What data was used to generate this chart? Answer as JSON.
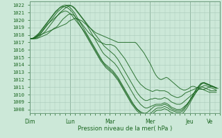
{
  "title": "",
  "xlabel": "Pression niveau de la mer( hPa )",
  "ylabel": "",
  "bg_color": "#cce8d8",
  "grid_color": "#a8c8b8",
  "line_color": "#1a6620",
  "ylim": [
    1007.5,
    1022.5
  ],
  "yticks": [
    1008,
    1009,
    1010,
    1011,
    1012,
    1013,
    1014,
    1015,
    1016,
    1017,
    1018,
    1019,
    1020,
    1021,
    1022
  ],
  "day_labels": [
    "Dim",
    "Lun",
    "Mar",
    "Mer",
    "Jeu",
    "Ve"
  ],
  "day_positions": [
    0,
    24,
    48,
    72,
    96,
    108
  ],
  "total_hours": 114,
  "lines": [
    [
      1017.5,
      1017.5,
      1017.6,
      1017.7,
      1017.8,
      1017.9,
      1018.0,
      1018.1,
      1018.2,
      1018.3,
      1018.4,
      1018.5,
      1018.6,
      1018.7,
      1018.8,
      1018.9,
      1019.0,
      1019.1,
      1019.2,
      1019.3,
      1019.4,
      1019.5,
      1019.7,
      1019.9,
      1020.0,
      1020.1,
      1020.2,
      1020.2,
      1020.1,
      1020.0,
      1019.9,
      1019.7,
      1019.5,
      1019.3,
      1019.1,
      1018.9,
      1018.7,
      1018.5,
      1018.3,
      1018.2,
      1018.1,
      1018.0,
      1017.9,
      1017.8,
      1017.7,
      1017.6,
      1017.5,
      1017.4,
      1017.3,
      1017.2,
      1017.1,
      1017.0,
      1017.0,
      1017.0,
      1017.0,
      1017.0,
      1017.0,
      1017.0,
      1017.0,
      1017.0,
      1017.0,
      1017.0,
      1016.8,
      1016.5,
      1016.2,
      1015.9,
      1015.6,
      1015.2,
      1014.8,
      1014.4,
      1014.0,
      1013.5,
      1013.0,
      1012.6,
      1012.3,
      1012.1,
      1012.0,
      1012.1,
      1012.2,
      1012.3,
      1012.2,
      1012.0,
      1011.8,
      1011.6,
      1011.4,
      1011.2,
      1011.0,
      1010.8,
      1010.7,
      1010.6,
      1010.6,
      1010.7,
      1010.8,
      1011.0,
      1011.1,
      1011.1,
      1011.0,
      1010.9,
      1010.8,
      1010.7,
      1010.7,
      1010.7,
      1010.8,
      1010.9,
      1011.0,
      1011.1,
      1011.1,
      1011.0,
      1010.9,
      1010.8
    ],
    [
      1017.5,
      1017.5,
      1017.5,
      1017.5,
      1017.5,
      1017.6,
      1017.7,
      1017.8,
      1017.9,
      1018.0,
      1018.1,
      1018.3,
      1018.5,
      1018.7,
      1018.9,
      1019.0,
      1019.2,
      1019.5,
      1019.8,
      1020.1,
      1020.3,
      1020.5,
      1020.7,
      1020.8,
      1020.8,
      1020.7,
      1020.5,
      1020.2,
      1020.0,
      1019.8,
      1019.5,
      1019.2,
      1018.9,
      1018.6,
      1018.3,
      1018.1,
      1017.9,
      1017.7,
      1017.5,
      1017.3,
      1017.1,
      1017.0,
      1016.9,
      1016.8,
      1016.7,
      1016.7,
      1016.7,
      1016.7,
      1016.6,
      1016.5,
      1016.3,
      1016.0,
      1015.7,
      1015.4,
      1015.1,
      1014.8,
      1014.4,
      1014.0,
      1013.6,
      1013.2,
      1012.8,
      1012.4,
      1012.0,
      1011.7,
      1011.4,
      1011.2,
      1011.0,
      1010.8,
      1010.7,
      1010.6,
      1010.5,
      1010.4,
      1010.5,
      1010.6,
      1010.6,
      1010.5,
      1010.5,
      1010.5,
      1010.5,
      1010.4,
      1010.3,
      1010.1,
      1009.9,
      1009.8,
      1009.7,
      1009.6,
      1009.6,
      1009.7,
      1009.8,
      1010.0,
      1010.2,
      1010.3,
      1010.4,
      1010.5,
      1010.6,
      1010.7,
      1010.8,
      1010.9,
      1011.0,
      1011.0,
      1011.0,
      1010.9,
      1010.8,
      1010.7,
      1010.6,
      1010.5,
      1010.5,
      1010.5,
      1010.5
    ],
    [
      1017.5,
      1017.5,
      1017.5,
      1017.5,
      1017.6,
      1017.7,
      1017.9,
      1018.1,
      1018.3,
      1018.5,
      1018.8,
      1019.1,
      1019.4,
      1019.7,
      1020.0,
      1020.3,
      1020.6,
      1020.9,
      1021.1,
      1021.3,
      1021.5,
      1021.7,
      1021.8,
      1021.9,
      1021.9,
      1021.8,
      1021.6,
      1021.3,
      1021.0,
      1020.7,
      1020.4,
      1020.1,
      1019.8,
      1019.5,
      1019.2,
      1018.9,
      1018.6,
      1018.3,
      1018.0,
      1017.7,
      1017.4,
      1017.1,
      1016.8,
      1016.5,
      1016.3,
      1016.1,
      1015.9,
      1015.7,
      1015.5,
      1015.3,
      1015.0,
      1014.7,
      1014.3,
      1013.9,
      1013.5,
      1013.1,
      1012.7,
      1012.3,
      1011.9,
      1011.5,
      1011.1,
      1010.7,
      1010.3,
      1010.0,
      1009.7,
      1009.5,
      1009.3,
      1009.2,
      1009.2,
      1009.3,
      1009.4,
      1009.4,
      1009.5,
      1009.5,
      1009.4,
      1009.4,
      1009.4,
      1009.5,
      1009.6,
      1009.5,
      1009.4,
      1009.2,
      1009.0,
      1008.9,
      1008.8,
      1008.7,
      1008.7,
      1008.7,
      1008.8,
      1009.0,
      1009.2,
      1009.4,
      1009.6,
      1009.8,
      1010.0,
      1010.2,
      1010.4,
      1010.6,
      1010.7,
      1010.8,
      1010.7,
      1010.6,
      1010.5,
      1010.4,
      1010.3,
      1010.3,
      1010.3,
      1010.3,
      1010.3
    ],
    [
      1017.5,
      1017.5,
      1017.5,
      1017.6,
      1017.7,
      1017.9,
      1018.1,
      1018.4,
      1018.7,
      1019.0,
      1019.3,
      1019.6,
      1019.9,
      1020.2,
      1020.5,
      1020.8,
      1021.1,
      1021.3,
      1021.5,
      1021.7,
      1021.8,
      1021.9,
      1022.0,
      1022.0,
      1021.9,
      1021.7,
      1021.5,
      1021.2,
      1020.9,
      1020.6,
      1020.3,
      1020.0,
      1019.7,
      1019.3,
      1018.9,
      1018.5,
      1018.1,
      1017.7,
      1017.3,
      1016.9,
      1016.5,
      1016.1,
      1015.7,
      1015.4,
      1015.2,
      1015.0,
      1014.8,
      1014.6,
      1014.4,
      1014.2,
      1013.9,
      1013.6,
      1013.2,
      1012.8,
      1012.4,
      1012.0,
      1011.6,
      1011.2,
      1010.8,
      1010.4,
      1010.0,
      1009.6,
      1009.3,
      1009.0,
      1008.7,
      1008.5,
      1008.3,
      1008.2,
      1008.2,
      1008.3,
      1008.4,
      1008.5,
      1008.6,
      1008.7,
      1008.7,
      1008.7,
      1008.7,
      1008.8,
      1008.9,
      1008.8,
      1008.7,
      1008.5,
      1008.3,
      1008.2,
      1008.1,
      1008.0,
      1008.0,
      1008.0,
      1008.1,
      1008.3,
      1008.5,
      1008.7,
      1009.0,
      1009.3,
      1009.6,
      1009.9,
      1010.2,
      1010.5,
      1010.8,
      1011.0,
      1011.1,
      1011.2,
      1011.2,
      1011.1,
      1011.0,
      1010.9,
      1010.8,
      1010.7,
      1010.6
    ],
    [
      1017.5,
      1017.5,
      1017.6,
      1017.7,
      1017.9,
      1018.1,
      1018.4,
      1018.7,
      1019.0,
      1019.3,
      1019.6,
      1019.9,
      1020.2,
      1020.5,
      1020.8,
      1021.1,
      1021.3,
      1021.6,
      1021.8,
      1021.9,
      1022.0,
      1022.0,
      1021.9,
      1021.7,
      1021.5,
      1021.2,
      1020.9,
      1020.5,
      1020.1,
      1019.7,
      1019.3,
      1018.9,
      1018.5,
      1018.1,
      1017.7,
      1017.3,
      1016.9,
      1016.5,
      1016.1,
      1015.7,
      1015.3,
      1014.9,
      1014.5,
      1014.2,
      1014.0,
      1013.8,
      1013.6,
      1013.4,
      1013.2,
      1012.9,
      1012.6,
      1012.3,
      1011.9,
      1011.5,
      1011.1,
      1010.7,
      1010.3,
      1009.9,
      1009.5,
      1009.1,
      1008.7,
      1008.4,
      1008.1,
      1007.9,
      1007.7,
      1007.6,
      1007.5,
      1007.5,
      1007.6,
      1007.8,
      1008.0,
      1008.2,
      1008.4,
      1008.5,
      1008.5,
      1008.5,
      1008.5,
      1008.6,
      1008.7,
      1008.6,
      1008.5,
      1008.3,
      1008.1,
      1008.0,
      1007.9,
      1007.8,
      1007.8,
      1007.8,
      1007.9,
      1008.1,
      1008.4,
      1008.7,
      1009.0,
      1009.4,
      1009.8,
      1010.2,
      1010.6,
      1010.9,
      1011.2,
      1011.4,
      1011.5,
      1011.5,
      1011.4,
      1011.3,
      1011.2,
      1011.1,
      1011.0,
      1010.9,
      1010.8
    ],
    [
      1017.5,
      1017.5,
      1017.6,
      1017.8,
      1018.0,
      1018.2,
      1018.5,
      1018.8,
      1019.1,
      1019.4,
      1019.7,
      1020.0,
      1020.3,
      1020.6,
      1020.9,
      1021.2,
      1021.4,
      1021.6,
      1021.7,
      1021.8,
      1021.8,
      1021.7,
      1021.6,
      1021.4,
      1021.2,
      1020.9,
      1020.5,
      1020.1,
      1019.7,
      1019.3,
      1018.9,
      1018.5,
      1018.1,
      1017.7,
      1017.3,
      1016.9,
      1016.5,
      1016.1,
      1015.7,
      1015.3,
      1014.9,
      1014.5,
      1014.2,
      1013.9,
      1013.6,
      1013.4,
      1013.2,
      1013.0,
      1012.8,
      1012.5,
      1012.2,
      1011.9,
      1011.5,
      1011.1,
      1010.7,
      1010.3,
      1009.9,
      1009.5,
      1009.1,
      1008.7,
      1008.4,
      1008.1,
      1007.8,
      1007.6,
      1007.4,
      1007.2,
      1007.1,
      1007.0,
      1007.0,
      1007.1,
      1007.2,
      1007.4,
      1007.6,
      1007.8,
      1007.9,
      1007.9,
      1007.9,
      1008.0,
      1008.1,
      1008.0,
      1007.9,
      1007.7,
      1007.6,
      1007.5,
      1007.4,
      1007.3,
      1007.3,
      1007.3,
      1007.4,
      1007.6,
      1007.9,
      1008.2,
      1008.6,
      1009.0,
      1009.4,
      1009.8,
      1010.2,
      1010.6,
      1011.0,
      1011.3,
      1011.5,
      1011.6,
      1011.5,
      1011.4,
      1011.3,
      1011.2,
      1011.1,
      1011.0,
      1010.9
    ],
    [
      1017.5,
      1017.5,
      1017.5,
      1017.6,
      1017.8,
      1018.0,
      1018.2,
      1018.5,
      1018.8,
      1019.1,
      1019.4,
      1019.6,
      1019.8,
      1020.0,
      1020.2,
      1020.4,
      1020.6,
      1020.8,
      1021.0,
      1021.1,
      1021.2,
      1021.2,
      1021.1,
      1020.9,
      1020.7,
      1020.4,
      1020.1,
      1019.8,
      1019.5,
      1019.2,
      1018.9,
      1018.6,
      1018.3,
      1017.9,
      1017.5,
      1017.1,
      1016.7,
      1016.3,
      1015.9,
      1015.5,
      1015.1,
      1014.7,
      1014.4,
      1014.1,
      1013.8,
      1013.6,
      1013.4,
      1013.2,
      1013.0,
      1012.7,
      1012.4,
      1012.1,
      1011.7,
      1011.3,
      1010.9,
      1010.5,
      1010.1,
      1009.7,
      1009.3,
      1008.9,
      1008.6,
      1008.3,
      1008.0,
      1007.8,
      1007.6,
      1007.4,
      1007.3,
      1007.2,
      1007.2,
      1007.3,
      1007.5,
      1007.7,
      1007.9,
      1008.1,
      1008.2,
      1008.2,
      1008.2,
      1008.3,
      1008.4,
      1008.3,
      1008.2,
      1008.0,
      1007.9,
      1007.8,
      1007.7,
      1007.6,
      1007.6,
      1007.6,
      1007.7,
      1007.9,
      1008.2,
      1008.5,
      1008.9,
      1009.3,
      1009.7,
      1010.1,
      1010.5,
      1010.9,
      1011.2,
      1011.5,
      1011.6,
      1011.6,
      1011.5,
      1011.4,
      1011.3,
      1011.2,
      1011.1,
      1011.0,
      1010.9
    ]
  ]
}
